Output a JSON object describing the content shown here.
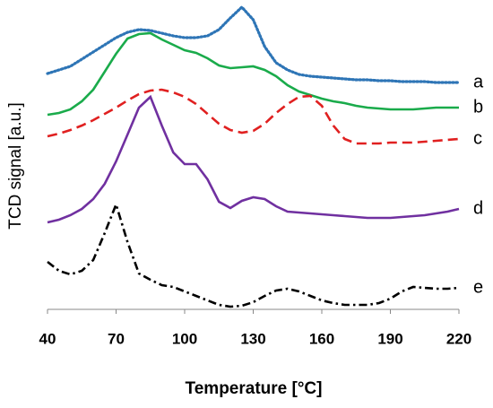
{
  "chart_data": {
    "type": "line",
    "x_label": "Temperature [°C]",
    "y_label": "TCD signal [a.u.]",
    "x": [
      40,
      45,
      50,
      55,
      60,
      65,
      70,
      75,
      80,
      85,
      90,
      95,
      100,
      105,
      110,
      115,
      120,
      125,
      130,
      135,
      140,
      145,
      150,
      155,
      160,
      165,
      170,
      175,
      180,
      185,
      190,
      195,
      200,
      205,
      210,
      215,
      220
    ],
    "xlim": [
      40,
      220
    ],
    "xticks": [
      40,
      70,
      100,
      130,
      160,
      190,
      220
    ],
    "ylim": [
      0,
      340
    ],
    "series": [
      {
        "name": "a",
        "color": "#2e75b6",
        "style": "dotted",
        "values": [
          263,
          267,
          271,
          279,
          287,
          295,
          303,
          309,
          312,
          311,
          308,
          305,
          303,
          303,
          305,
          312,
          325,
          337,
          323,
          293,
          275,
          267,
          262,
          260,
          259,
          258,
          257,
          256,
          256,
          255,
          255,
          254,
          254,
          254,
          253,
          253,
          253
        ]
      },
      {
        "name": "b",
        "color": "#1aab4b",
        "style": "solid",
        "values": [
          217,
          219,
          223,
          232,
          245,
          265,
          285,
          302,
          307,
          308,
          301,
          295,
          289,
          286,
          280,
          272,
          269,
          270,
          271,
          267,
          260,
          250,
          243,
          239,
          235,
          232,
          230,
          227,
          225,
          224,
          223,
          223,
          223,
          224,
          225,
          225,
          225
        ]
      },
      {
        "name": "c",
        "color": "#e02020",
        "style": "dashed",
        "values": [
          193,
          196,
          200,
          205,
          211,
          218,
          225,
          233,
          240,
          244,
          245,
          242,
          237,
          229,
          218,
          207,
          200,
          197,
          199,
          207,
          219,
          229,
          237,
          238,
          227,
          205,
          190,
          185,
          185,
          185,
          186,
          186,
          186,
          187,
          188,
          189,
          190
        ]
      },
      {
        "name": "d",
        "color": "#7030a0",
        "style": "solid",
        "values": [
          97,
          100,
          105,
          112,
          123,
          140,
          165,
          195,
          225,
          237,
          205,
          175,
          162,
          162,
          145,
          120,
          113,
          121,
          125,
          123,
          115,
          109,
          108,
          107,
          106,
          105,
          104,
          103,
          102,
          102,
          102,
          103,
          104,
          105,
          107,
          109,
          112
        ]
      },
      {
        "name": "e",
        "color": "#000000",
        "style": "dashdot",
        "values": [
          53,
          43,
          39,
          43,
          55,
          85,
          117,
          75,
          40,
          33,
          27,
          25,
          20,
          15,
          10,
          5,
          3,
          4,
          8,
          15,
          21,
          23,
          20,
          15,
          10,
          7,
          5,
          5,
          5,
          7,
          12,
          20,
          25,
          24,
          23,
          23,
          24
        ]
      }
    ]
  }
}
